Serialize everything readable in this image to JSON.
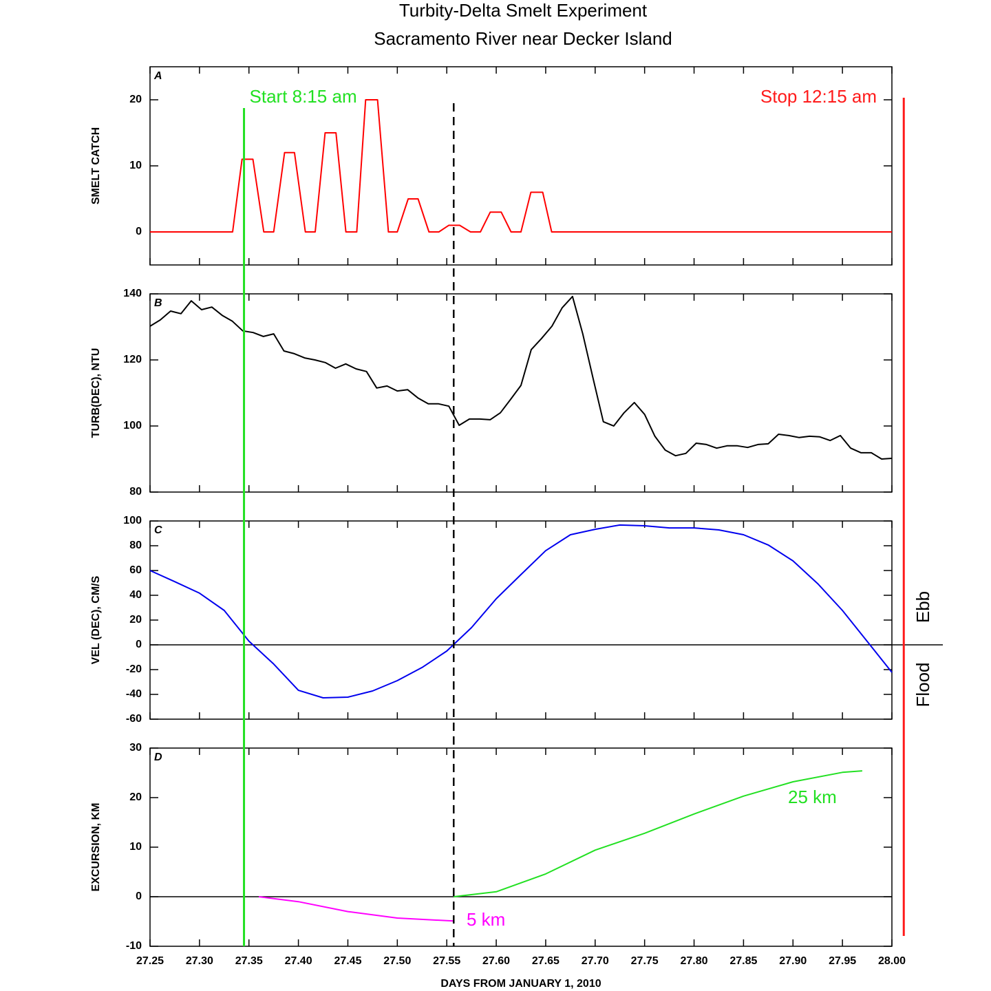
{
  "title": "Turbity-Delta Smelt Experiment",
  "subtitle": "Sacramento River near  Decker Island",
  "xlabel": "DAYS FROM JANUARY 1, 2010",
  "markers": [
    {
      "label": "Start 8:15 am",
      "x": 27.345,
      "color": "#22e022"
    },
    {
      "label": "Stop 12:15 am",
      "x": 28.012,
      "color": "#ff1a1a"
    },
    {
      "x": 27.557,
      "color": "#000000",
      "style": "dashed"
    }
  ],
  "chart_data": [
    {
      "type": "line",
      "panel": "A",
      "ylabel": "SMELT CATCH",
      "xlim": [
        27.25,
        28.0
      ],
      "ylim": [
        -5,
        25
      ],
      "yticks": [
        0,
        10,
        20
      ],
      "series": [
        {
          "color": "#ff0000",
          "x": [
            27.25,
            27.3335,
            27.343,
            27.354,
            27.365,
            27.375,
            27.386,
            27.396,
            27.407,
            27.417,
            27.427,
            27.438,
            27.448,
            27.459,
            27.468,
            27.48,
            27.491,
            27.5,
            27.511,
            27.521,
            27.532,
            27.542,
            27.552,
            27.563,
            27.574,
            27.584,
            27.594,
            27.605,
            27.615,
            27.625,
            27.635,
            27.647,
            27.656,
            28.0
          ],
          "values": [
            0,
            0,
            11,
            11,
            0,
            0,
            12,
            12,
            0,
            0,
            15,
            15,
            0,
            0,
            20,
            20,
            0,
            0,
            5,
            5,
            0,
            0,
            1,
            1,
            0,
            0,
            3,
            3,
            0,
            0,
            6,
            6,
            0,
            0
          ]
        }
      ]
    },
    {
      "type": "line",
      "panel": "B",
      "ylabel": "TURB(DEC), NTU",
      "xlim": [
        27.25,
        28.0
      ],
      "ylim": [
        80,
        140
      ],
      "yticks": [
        80,
        100,
        120,
        140
      ],
      "series": [
        {
          "color": "#000000",
          "x": [
            27.25,
            27.2604,
            27.2708,
            27.2813,
            27.2917,
            27.3021,
            27.3125,
            27.3229,
            27.3333,
            27.3438,
            27.3542,
            27.3646,
            27.375,
            27.3854,
            27.3958,
            27.4063,
            27.4167,
            27.4271,
            27.4375,
            27.4479,
            27.4583,
            27.4688,
            27.4792,
            27.4896,
            27.5,
            27.5104,
            27.5208,
            27.5313,
            27.5417,
            27.5521,
            27.5625,
            27.5729,
            27.5833,
            27.5938,
            27.6042,
            27.6146,
            27.625,
            27.6354,
            27.6458,
            27.6563,
            27.6667,
            27.6771,
            27.6875,
            27.6979,
            27.7083,
            27.7188,
            27.7292,
            27.7396,
            27.75,
            27.7604,
            27.7708,
            27.7813,
            27.7917,
            27.8021,
            27.8125,
            27.8229,
            27.8333,
            27.8438,
            27.8542,
            27.8646,
            27.875,
            27.8854,
            27.8958,
            27.9063,
            27.9167,
            27.9271,
            27.9375,
            27.9479,
            27.9583,
            27.9688,
            27.9792,
            27.9896,
            28.0
          ],
          "values": [
            130.2,
            132.1,
            134.8,
            134,
            137.9,
            135.2,
            136,
            133.5,
            131.7,
            128.8,
            128.3,
            127.1,
            127.9,
            122.7,
            121.9,
            120.6,
            120,
            119.2,
            117.5,
            118.8,
            117.3,
            116.5,
            111.5,
            112.1,
            110.6,
            111,
            108.5,
            106.7,
            106.7,
            106,
            100.2,
            102.1,
            102.1,
            101.9,
            104,
            108.1,
            112.3,
            123.1,
            126.5,
            130.2,
            135.8,
            139.2,
            127.9,
            114.4,
            101.3,
            100,
            104,
            107.1,
            103.5,
            96.9,
            92.7,
            91,
            91.7,
            94.8,
            94.4,
            93.3,
            94,
            94,
            93.5,
            94.4,
            94.6,
            97.5,
            97.1,
            96.5,
            96.9,
            96.7,
            95.6,
            97.1,
            93.3,
            91.9,
            91.9,
            90,
            90.2
          ]
        }
      ]
    },
    {
      "type": "line",
      "panel": "C",
      "ylabel": "VEL (DEC), CM/S",
      "xlim": [
        27.25,
        28.0
      ],
      "ylim": [
        -60,
        100
      ],
      "yticks": [
        -60,
        -40,
        -20,
        0,
        20,
        40,
        60,
        80,
        100
      ],
      "annotations": [
        {
          "text": "Ebb",
          "color": "#000000"
        },
        {
          "text": "Flood",
          "color": "#000000"
        }
      ],
      "series": [
        {
          "color": "#0000ee",
          "x": [
            27.25,
            27.275,
            27.3,
            27.325,
            27.35,
            27.375,
            27.4,
            27.425,
            27.45,
            27.475,
            27.5,
            27.525,
            27.55,
            27.575,
            27.6,
            27.625,
            27.65,
            27.675,
            27.7,
            27.725,
            27.75,
            27.775,
            27.8,
            27.825,
            27.85,
            27.875,
            27.9,
            27.925,
            27.95,
            27.975,
            28.0
          ],
          "values": [
            60,
            51,
            41.7,
            27.8,
            3,
            -15.5,
            -36.7,
            -42.8,
            -42.2,
            -37.2,
            -28.9,
            -18.3,
            -5,
            13.9,
            37.2,
            56.7,
            76,
            88.9,
            93.3,
            96.7,
            96.1,
            94.4,
            94.4,
            92.8,
            88.9,
            80.6,
            67.8,
            49.4,
            27.8,
            2.8,
            -22.2
          ]
        }
      ]
    },
    {
      "type": "line",
      "panel": "D",
      "ylabel": "EXCURSION, KM",
      "xlim": [
        27.25,
        28.0
      ],
      "ylim": [
        -10,
        30
      ],
      "yticks": [
        -10,
        0,
        10,
        20,
        30
      ],
      "xticks": [
        27.25,
        {
          "value": 27.3,
          "label": "27.30"
        },
        27.35,
        {
          "value": 27.4,
          "label": "27.40"
        },
        27.45,
        {
          "value": 27.5,
          "label": "27.50"
        },
        27.55,
        {
          "value": 27.6,
          "label": "27.60"
        },
        27.65,
        {
          "value": 27.7,
          "label": "27.70"
        },
        27.75,
        {
          "value": 27.8,
          "label": "27.80"
        },
        27.85,
        {
          "value": 27.9,
          "label": "27.90"
        },
        27.95,
        {
          "value": 28.0,
          "label": "28.00"
        }
      ],
      "annotations": [
        {
          "text": "5 km",
          "color": "#ff00ff"
        },
        {
          "text": "25 km",
          "color": "#22e022"
        }
      ],
      "series": [
        {
          "color": "#ff00ff",
          "x": [
            27.36,
            27.4,
            27.45,
            27.5,
            27.557
          ],
          "values": [
            0,
            -1,
            -3,
            -4.3,
            -4.9
          ]
        },
        {
          "color": "#22e022",
          "x": [
            27.557,
            27.6,
            27.65,
            27.7,
            27.75,
            27.8,
            27.85,
            27.9,
            27.95,
            27.97
          ],
          "values": [
            0,
            1,
            4.6,
            9.4,
            12.8,
            16.7,
            20.3,
            23.2,
            25.1,
            25.4
          ]
        }
      ]
    }
  ]
}
